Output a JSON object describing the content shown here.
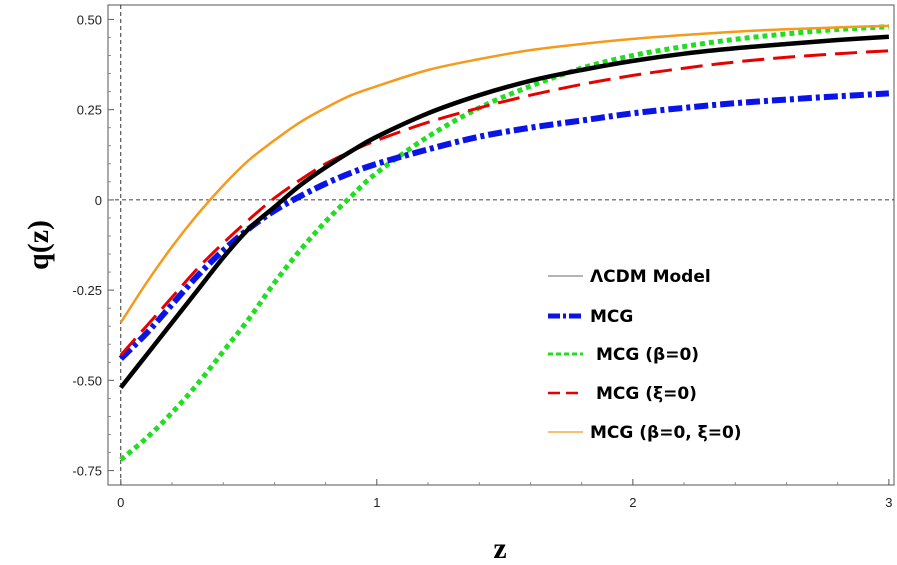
{
  "chart_data": {
    "type": "line",
    "title": "",
    "xlabel": "z",
    "ylabel": "q(z)",
    "xlim": [
      -0.05,
      3.02
    ],
    "ylim": [
      -0.79,
      0.54
    ],
    "xticks": [
      0,
      1,
      2,
      3
    ],
    "xtick_labels": [
      "0",
      "1",
      "2",
      "3"
    ],
    "yticks": [
      -0.75,
      -0.5,
      -0.25,
      0,
      0.25,
      0.5
    ],
    "ytick_labels": [
      "-0.75",
      "-0.50",
      "-0.25",
      "0",
      "0.25",
      "0.50"
    ],
    "reference_lines": {
      "x": 0,
      "y": 0
    },
    "legend_position": "right-center",
    "series": [
      {
        "name": "ΛCDM Model",
        "color": "#000000",
        "style": "solid",
        "x": [
          0,
          0.1,
          0.2,
          0.3,
          0.4,
          0.5,
          0.6,
          0.7,
          0.8,
          0.9,
          1.0,
          1.2,
          1.4,
          1.6,
          1.8,
          2.0,
          2.2,
          2.4,
          2.6,
          2.8,
          3.0
        ],
        "y": [
          -0.52,
          -0.43,
          -0.34,
          -0.25,
          -0.16,
          -0.08,
          -0.02,
          0.04,
          0.09,
          0.135,
          0.175,
          0.24,
          0.29,
          0.33,
          0.36,
          0.385,
          0.405,
          0.42,
          0.432,
          0.443,
          0.452
        ]
      },
      {
        "name": "MCG",
        "color": "#0a14e6",
        "style": "dashdot",
        "x": [
          0,
          0.1,
          0.2,
          0.3,
          0.4,
          0.5,
          0.6,
          0.7,
          0.8,
          0.9,
          1.0,
          1.2,
          1.4,
          1.6,
          1.8,
          2.0,
          2.2,
          2.4,
          2.6,
          2.8,
          3.0
        ],
        "y": [
          -0.44,
          -0.37,
          -0.29,
          -0.21,
          -0.14,
          -0.08,
          -0.03,
          0.01,
          0.045,
          0.075,
          0.1,
          0.14,
          0.175,
          0.2,
          0.22,
          0.24,
          0.255,
          0.268,
          0.278,
          0.287,
          0.295
        ]
      },
      {
        "name": "MCG (β=0)",
        "color": "#22dd22",
        "style": "dotted",
        "x": [
          0,
          0.1,
          0.2,
          0.3,
          0.4,
          0.5,
          0.6,
          0.7,
          0.8,
          0.9,
          1.0,
          1.2,
          1.4,
          1.6,
          1.8,
          2.0,
          2.2,
          2.4,
          2.6,
          2.8,
          3.0
        ],
        "y": [
          -0.72,
          -0.66,
          -0.59,
          -0.51,
          -0.42,
          -0.33,
          -0.23,
          -0.14,
          -0.06,
          0.01,
          0.075,
          0.175,
          0.255,
          0.315,
          0.365,
          0.4,
          0.425,
          0.445,
          0.46,
          0.472,
          0.48
        ]
      },
      {
        "name": "MCG (ξ=0)",
        "color": "#e60000",
        "style": "dashed",
        "x": [
          0,
          0.1,
          0.2,
          0.3,
          0.4,
          0.5,
          0.6,
          0.7,
          0.8,
          0.9,
          1.0,
          1.2,
          1.4,
          1.6,
          1.8,
          2.0,
          2.2,
          2.4,
          2.6,
          2.8,
          3.0
        ],
        "y": [
          -0.43,
          -0.35,
          -0.27,
          -0.19,
          -0.12,
          -0.055,
          0.005,
          0.055,
          0.1,
          0.135,
          0.165,
          0.215,
          0.255,
          0.29,
          0.32,
          0.345,
          0.365,
          0.382,
          0.395,
          0.405,
          0.413
        ]
      },
      {
        "name": "MCG (β=0, ξ=0)",
        "color": "#f59a1b",
        "style": "solid-thin",
        "x": [
          0,
          0.1,
          0.2,
          0.3,
          0.4,
          0.5,
          0.6,
          0.7,
          0.8,
          0.9,
          1.0,
          1.2,
          1.4,
          1.6,
          1.8,
          2.0,
          2.2,
          2.4,
          2.6,
          2.8,
          3.0
        ],
        "y": [
          -0.34,
          -0.23,
          -0.13,
          -0.04,
          0.04,
          0.11,
          0.165,
          0.215,
          0.255,
          0.29,
          0.315,
          0.36,
          0.39,
          0.415,
          0.432,
          0.446,
          0.457,
          0.466,
          0.473,
          0.478,
          0.482
        ]
      }
    ]
  }
}
